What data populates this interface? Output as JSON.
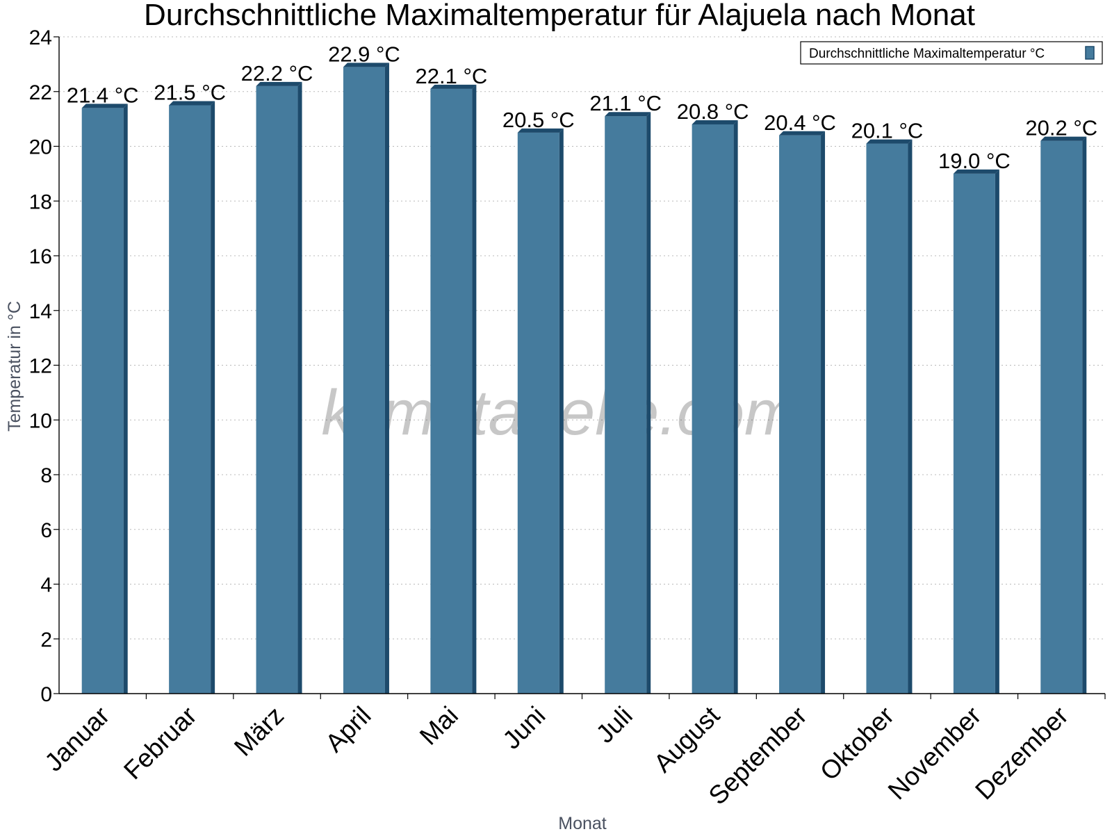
{
  "chart_data": {
    "type": "bar",
    "title": "Durchschnittliche Maximaltemperatur für Alajuela nach Monat",
    "xlabel": "Monat",
    "ylabel": "Temperatur in °C",
    "ylim": [
      0,
      24
    ],
    "yticks": [
      0,
      2,
      4,
      6,
      8,
      10,
      12,
      14,
      16,
      18,
      20,
      22,
      24
    ],
    "grid": true,
    "legend_position": "top-right",
    "categories": [
      "Januar",
      "Februar",
      "März",
      "April",
      "Mai",
      "Juni",
      "Juli",
      "August",
      "September",
      "Oktober",
      "November",
      "Dezember"
    ],
    "series": [
      {
        "name": "Durchschnittliche Maximaltemperatur °C",
        "values": [
          21.4,
          21.5,
          22.2,
          22.9,
          22.1,
          20.5,
          21.1,
          20.8,
          20.4,
          20.1,
          19.0,
          20.2
        ],
        "data_labels": [
          "21.4 °C",
          "21.5 °C",
          "22.2 °C",
          "22.9 °C",
          "22.1 °C",
          "20.5 °C",
          "21.1 °C",
          "20.8 °C",
          "20.4 °C",
          "20.1 °C",
          "19.0 °C",
          "20.2 °C"
        ],
        "color": "#457b9d",
        "edge_color": "#1d4a6b"
      }
    ]
  },
  "watermark": "klimatabelle.com"
}
